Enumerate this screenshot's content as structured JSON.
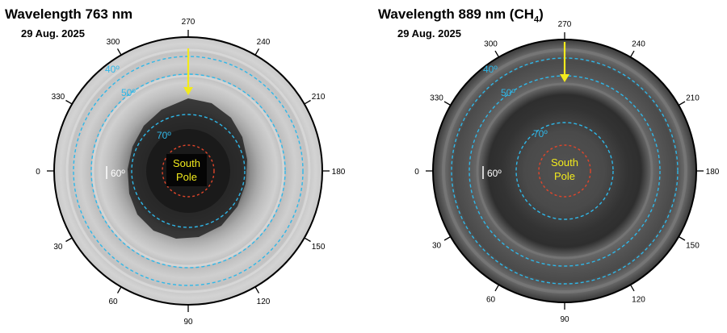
{
  "panels": [
    {
      "title_main": "Wavelength 763 nm",
      "title_sub": "",
      "title_tail": "",
      "date": "29 Aug. 2025",
      "lat_40": "40º",
      "lat_50": "50º",
      "lat_70": "70º",
      "lat_60": "60º",
      "pole_line1": "South",
      "pole_line2": "Pole"
    },
    {
      "title_main": "Wavelength 889 nm (CH",
      "title_sub": "4",
      "title_tail": ")",
      "date": "29 Aug. 2025",
      "lat_40": "40º",
      "lat_50": "50º",
      "lat_70": "70º",
      "lat_60": "60º",
      "pole_line1": "South",
      "pole_line2": "Pole"
    }
  ],
  "azimuth_ticks": [
    "0",
    "30",
    "60",
    "90",
    "120",
    "150",
    "180",
    "210",
    "240",
    "270",
    "300",
    "330"
  ],
  "colors": {
    "latitude_circle": "#2fb7e8",
    "pole_circle": "#e0452a",
    "arrow": "#f2ea1d",
    "pole_text": "#f2ea1d"
  }
}
